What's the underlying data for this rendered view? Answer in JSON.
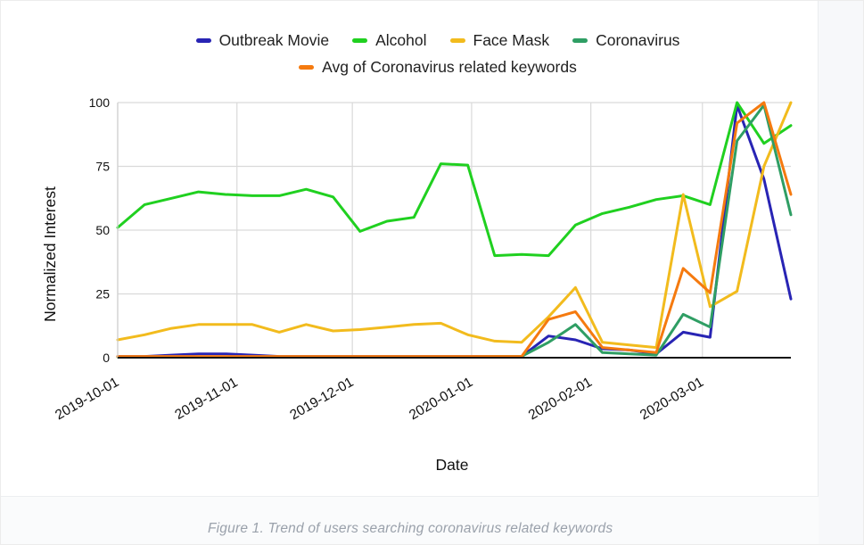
{
  "figure": {
    "caption": "Figure 1. Trend of users searching coronavirus related keywords"
  },
  "chart_data": {
    "type": "line",
    "title": "",
    "xlabel": "Date",
    "ylabel": "Normalized Interest",
    "ylim": [
      0,
      100
    ],
    "y_ticks": [
      0,
      25,
      50,
      75,
      100
    ],
    "grid": true,
    "legend_position": "top-center",
    "x": [
      "2019-10-01",
      "2019-10-08",
      "2019-10-15",
      "2019-10-22",
      "2019-10-29",
      "2019-11-05",
      "2019-11-12",
      "2019-11-19",
      "2019-11-26",
      "2019-12-03",
      "2019-12-10",
      "2019-12-17",
      "2019-12-24",
      "2019-12-31",
      "2020-01-07",
      "2020-01-14",
      "2020-01-21",
      "2020-01-28",
      "2020-02-04",
      "2020-02-11",
      "2020-02-18",
      "2020-02-25",
      "2020-03-03",
      "2020-03-10",
      "2020-03-17",
      "2020-03-24"
    ],
    "x_ticks": [
      {
        "label": "2019-10-01",
        "day": 0
      },
      {
        "label": "2019-11-01",
        "day": 31
      },
      {
        "label": "2019-12-01",
        "day": 61
      },
      {
        "label": "2020-01-01",
        "day": 92
      },
      {
        "label": "2020-02-01",
        "day": 123
      },
      {
        "label": "2020-03-01",
        "day": 152
      }
    ],
    "x_span_days": 175,
    "series": [
      {
        "name": "Outbreak Movie",
        "color": "#2824b4",
        "values": [
          0.5,
          0.5,
          1,
          1.5,
          1.5,
          1,
          0.5,
          0.5,
          0.5,
          0.5,
          0.5,
          0.5,
          0.5,
          0.5,
          0.5,
          0.5,
          8.5,
          7,
          3.5,
          3,
          1.5,
          10,
          8,
          99,
          70,
          23
        ]
      },
      {
        "name": "Alcohol",
        "color": "#20d020",
        "values": [
          51,
          60,
          62.5,
          65,
          64,
          63.5,
          63.5,
          66,
          63,
          49.5,
          53.5,
          55,
          76,
          75.5,
          40,
          40.5,
          40,
          52,
          56.5,
          59,
          62,
          63.5,
          60,
          100,
          84,
          91
        ]
      },
      {
        "name": "Face Mask",
        "color": "#f2bb1d",
        "values": [
          7,
          9,
          11.5,
          13,
          13,
          13,
          10,
          13,
          10.5,
          11,
          12,
          13,
          13.5,
          9,
          6.5,
          6,
          16,
          27.5,
          6,
          5,
          4,
          64,
          20,
          26,
          75,
          100
        ]
      },
      {
        "name": "Coronavirus",
        "color": "#2f9e64",
        "values": [
          0.3,
          0.3,
          0.3,
          0.3,
          0.3,
          0.3,
          0.3,
          0.3,
          0.3,
          0.3,
          0.3,
          0.3,
          0.3,
          0.3,
          0.5,
          0.5,
          6,
          13,
          2,
          1.5,
          1,
          17,
          12,
          85,
          99,
          56
        ]
      },
      {
        "name": "Avg of Coronavirus related keywords",
        "color": "#f57a0f",
        "values": [
          0.5,
          0.5,
          0.5,
          0.5,
          0.5,
          0.5,
          0.5,
          0.5,
          0.5,
          0.5,
          0.5,
          0.5,
          0.5,
          0.5,
          0.5,
          0.5,
          15,
          18,
          4,
          3,
          2,
          35,
          25.5,
          92,
          100,
          64
        ]
      }
    ]
  }
}
